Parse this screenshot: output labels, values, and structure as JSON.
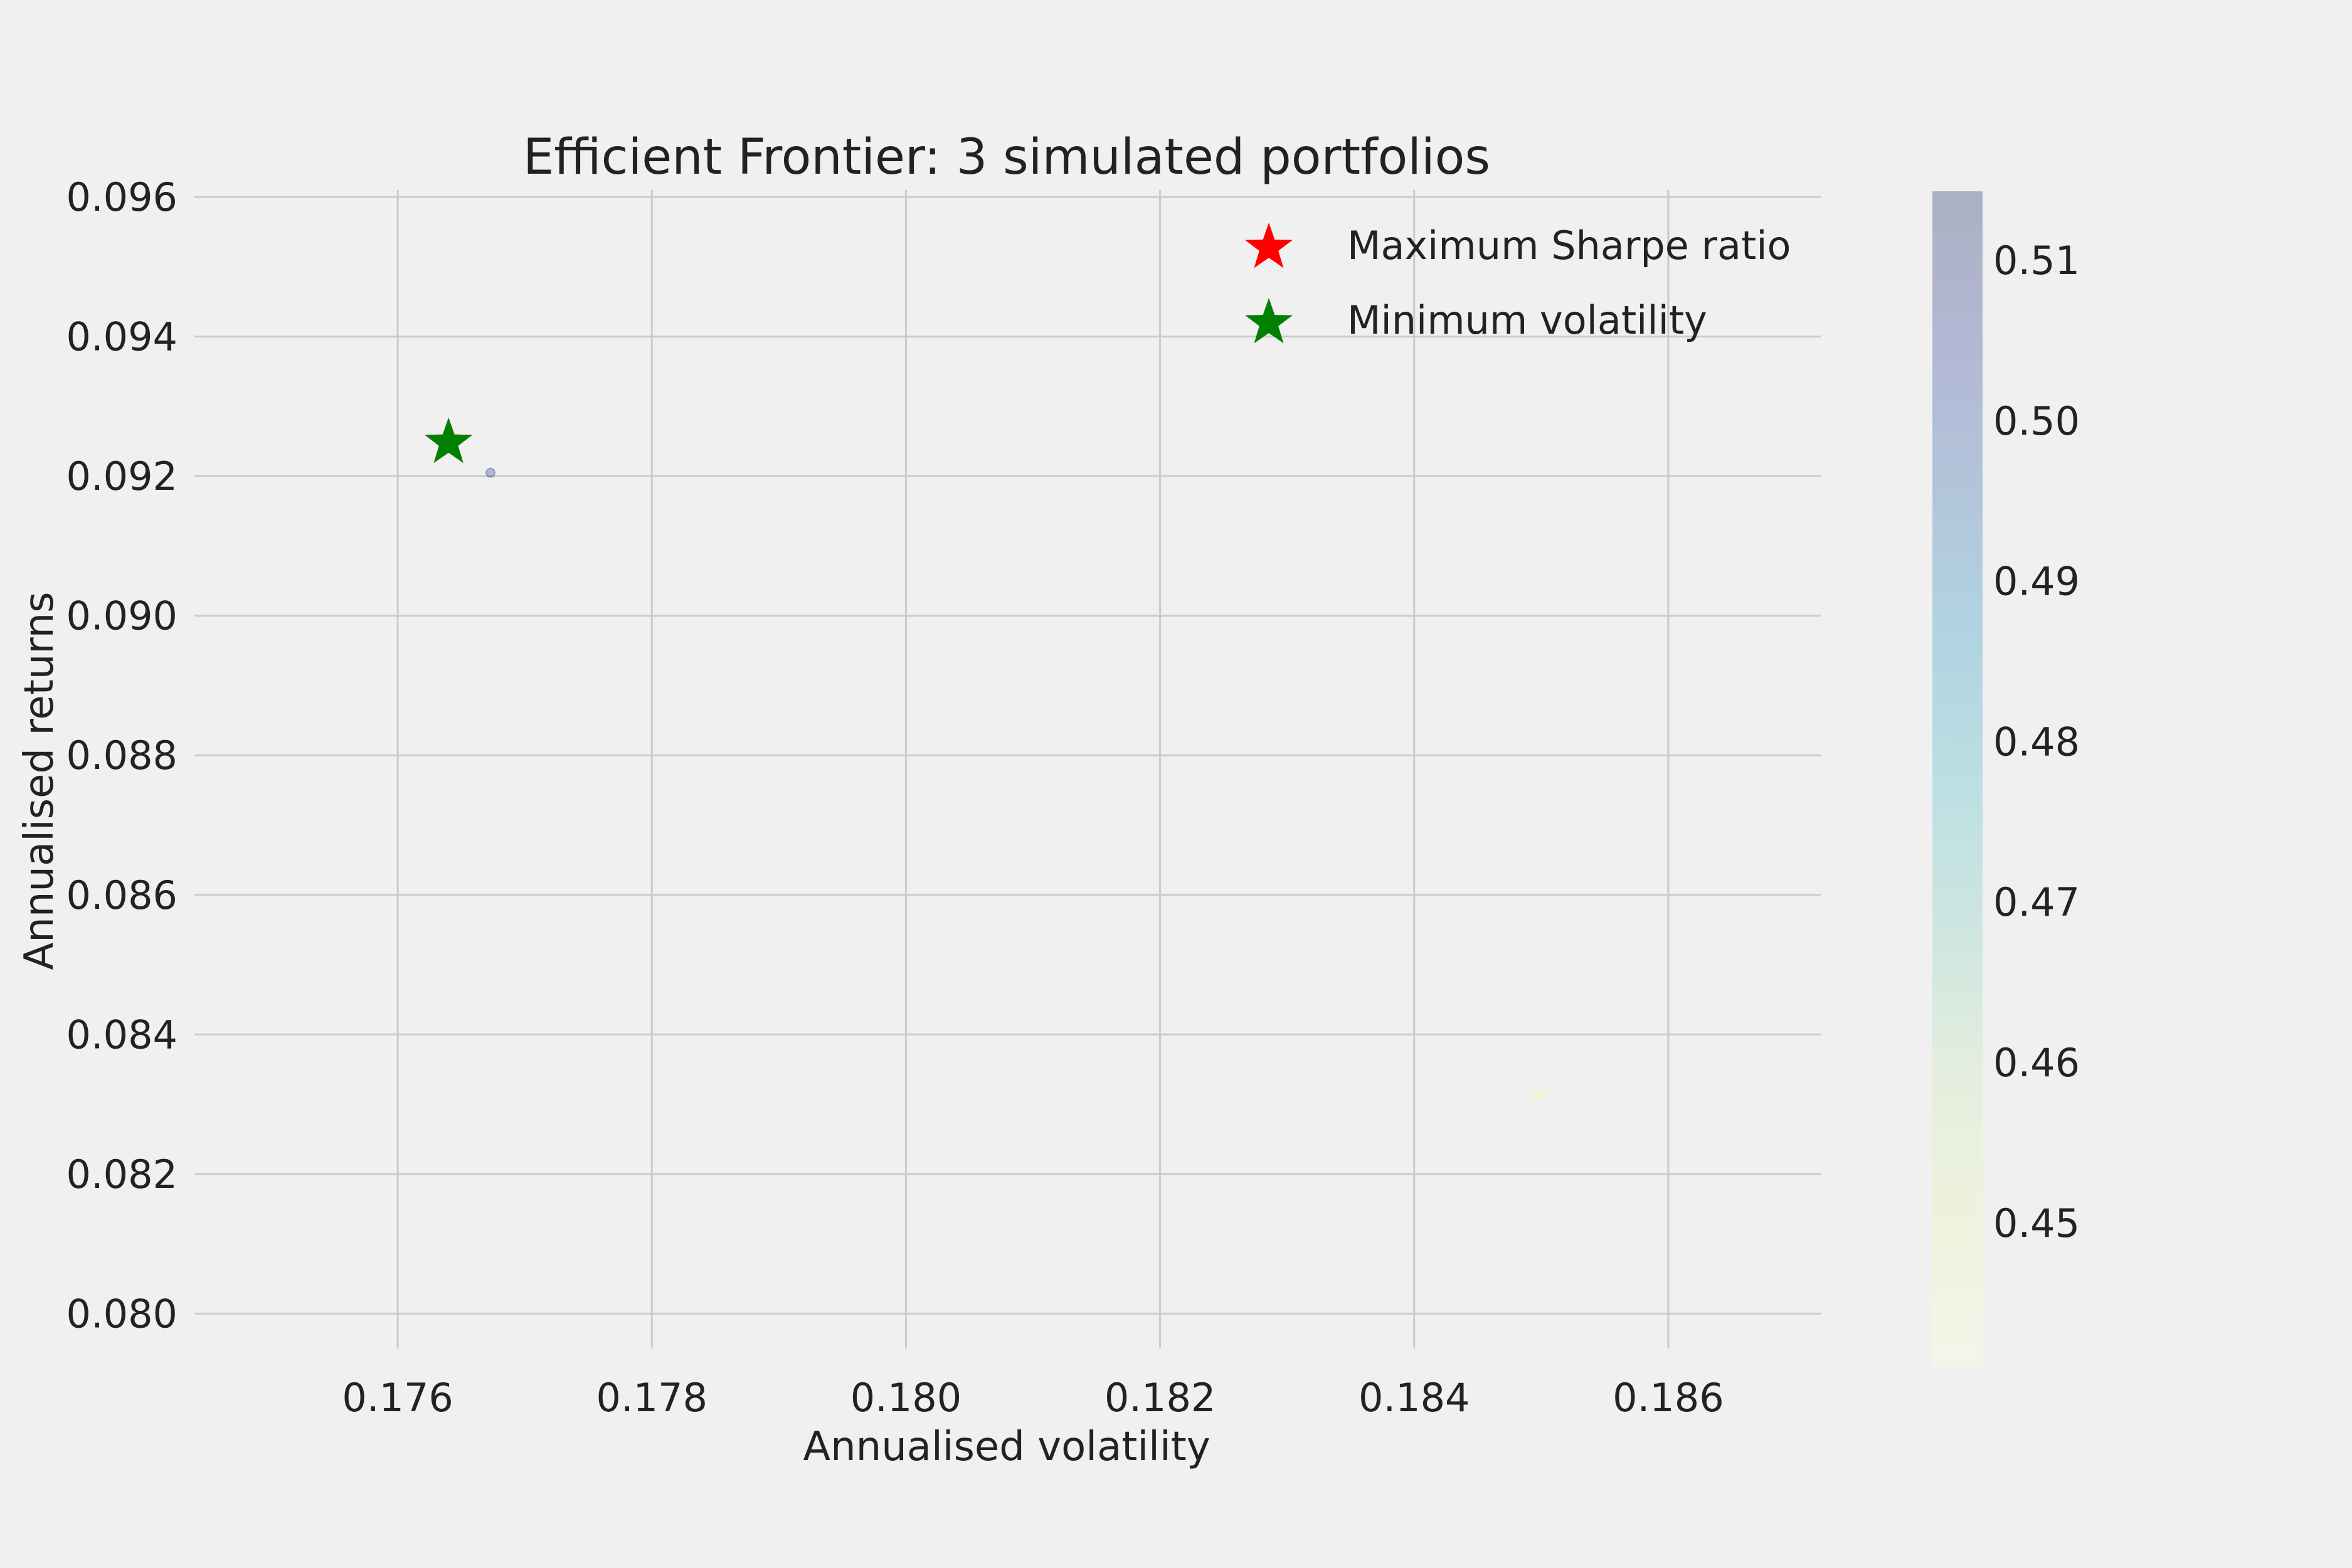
{
  "chart_data": {
    "type": "scatter",
    "title": "Efficient Frontier: 3 simulated portfolios",
    "xlabel": "Annualised volatility",
    "ylabel": "Annualised returns",
    "xlim": [
      0.1744,
      0.1872
    ],
    "ylim": [
      0.0795,
      0.0961
    ],
    "xticks": [
      "0.176",
      "0.178",
      "0.180",
      "0.182",
      "0.184",
      "0.186"
    ],
    "xtick_values": [
      0.176,
      0.178,
      0.18,
      0.182,
      0.184,
      0.186
    ],
    "yticks": [
      "0.080",
      "0.082",
      "0.084",
      "0.086",
      "0.088",
      "0.090",
      "0.092",
      "0.094",
      "0.096"
    ],
    "ytick_values": [
      0.08,
      0.082,
      0.084,
      0.086,
      0.088,
      0.09,
      0.092,
      0.094,
      0.096
    ],
    "grid": true,
    "points": [
      {
        "x": 0.17673,
        "y": 0.09205,
        "sharpe": 0.5143
      },
      {
        "x": 0.18495,
        "y": 0.08313,
        "sharpe": 0.441
      },
      {
        "x": 0.185,
        "y": 0.08315,
        "sharpe": 0.4411
      }
    ],
    "markers": [
      {
        "name": "Maximum Sharpe ratio",
        "x": 0.1764,
        "y": 0.09248,
        "color": "#ff0000",
        "shape": "star"
      },
      {
        "name": "Minimum volatility",
        "x": 0.1764,
        "y": 0.09248,
        "color": "#008000",
        "shape": "star"
      }
    ],
    "legend": {
      "placement": "top-right",
      "entries": [
        {
          "label": "Maximum Sharpe ratio",
          "color": "#ff0000"
        },
        {
          "label": "Minimum volatility",
          "color": "#008000"
        }
      ]
    },
    "colorbar": {
      "colormap": "YlGnBu",
      "range": [
        0.441,
        0.5143
      ],
      "ticks": [
        "0.45",
        "0.46",
        "0.47",
        "0.48",
        "0.49",
        "0.50",
        "0.51"
      ],
      "tick_values": [
        0.45,
        0.46,
        0.47,
        0.48,
        0.49,
        0.5,
        0.51
      ],
      "alpha": 0.3
    }
  }
}
